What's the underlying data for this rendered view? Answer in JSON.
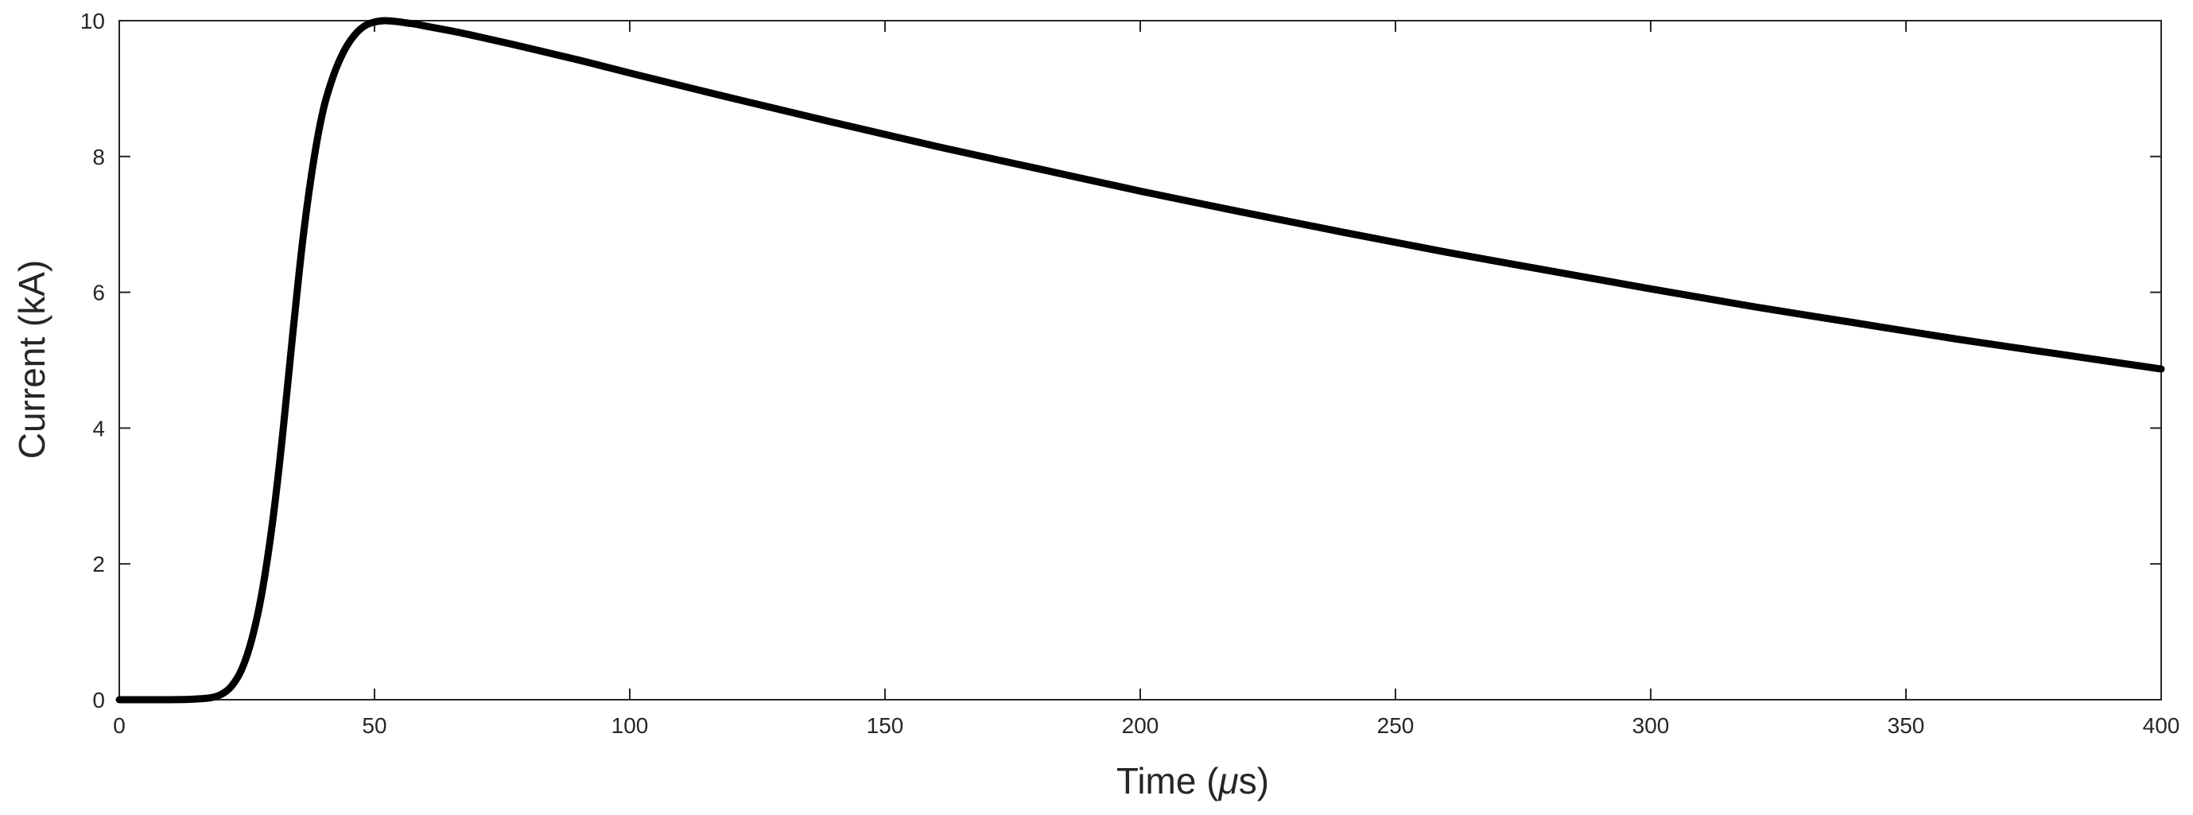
{
  "chart_data": {
    "type": "line",
    "title": "",
    "xlabel": "Time (μs)",
    "xlabel_parts": {
      "prefix": "Time (",
      "mu": "μ",
      "suffix": "s)"
    },
    "ylabel": "Current (kA)",
    "xlim": [
      0,
      400
    ],
    "ylim": [
      0,
      10
    ],
    "xticks": [
      0,
      50,
      100,
      150,
      200,
      250,
      300,
      350,
      400
    ],
    "yticks": [
      0,
      2,
      4,
      6,
      8,
      10
    ],
    "grid": false,
    "legend": "none",
    "series": [
      {
        "color": "#000000",
        "x": [
          0,
          5,
          10,
          15,
          18,
          20,
          22,
          24,
          26,
          28,
          30,
          32,
          34,
          36,
          38,
          40,
          42,
          44,
          46,
          48,
          50,
          52,
          54,
          56,
          58,
          60,
          65,
          70,
          80,
          90,
          100,
          120,
          140,
          160,
          180,
          200,
          220,
          240,
          260,
          280,
          300,
          320,
          340,
          360,
          380,
          400
        ],
        "y": [
          0,
          0,
          0,
          0.01,
          0.03,
          0.08,
          0.2,
          0.45,
          0.9,
          1.6,
          2.6,
          3.9,
          5.4,
          6.8,
          7.9,
          8.7,
          9.2,
          9.55,
          9.78,
          9.92,
          9.98,
          10.0,
          9.99,
          9.97,
          9.95,
          9.92,
          9.85,
          9.77,
          9.6,
          9.42,
          9.23,
          8.86,
          8.5,
          8.15,
          7.82,
          7.49,
          7.18,
          6.88,
          6.59,
          6.32,
          6.05,
          5.79,
          5.55,
          5.31,
          5.09,
          4.87
        ]
      }
    ]
  }
}
